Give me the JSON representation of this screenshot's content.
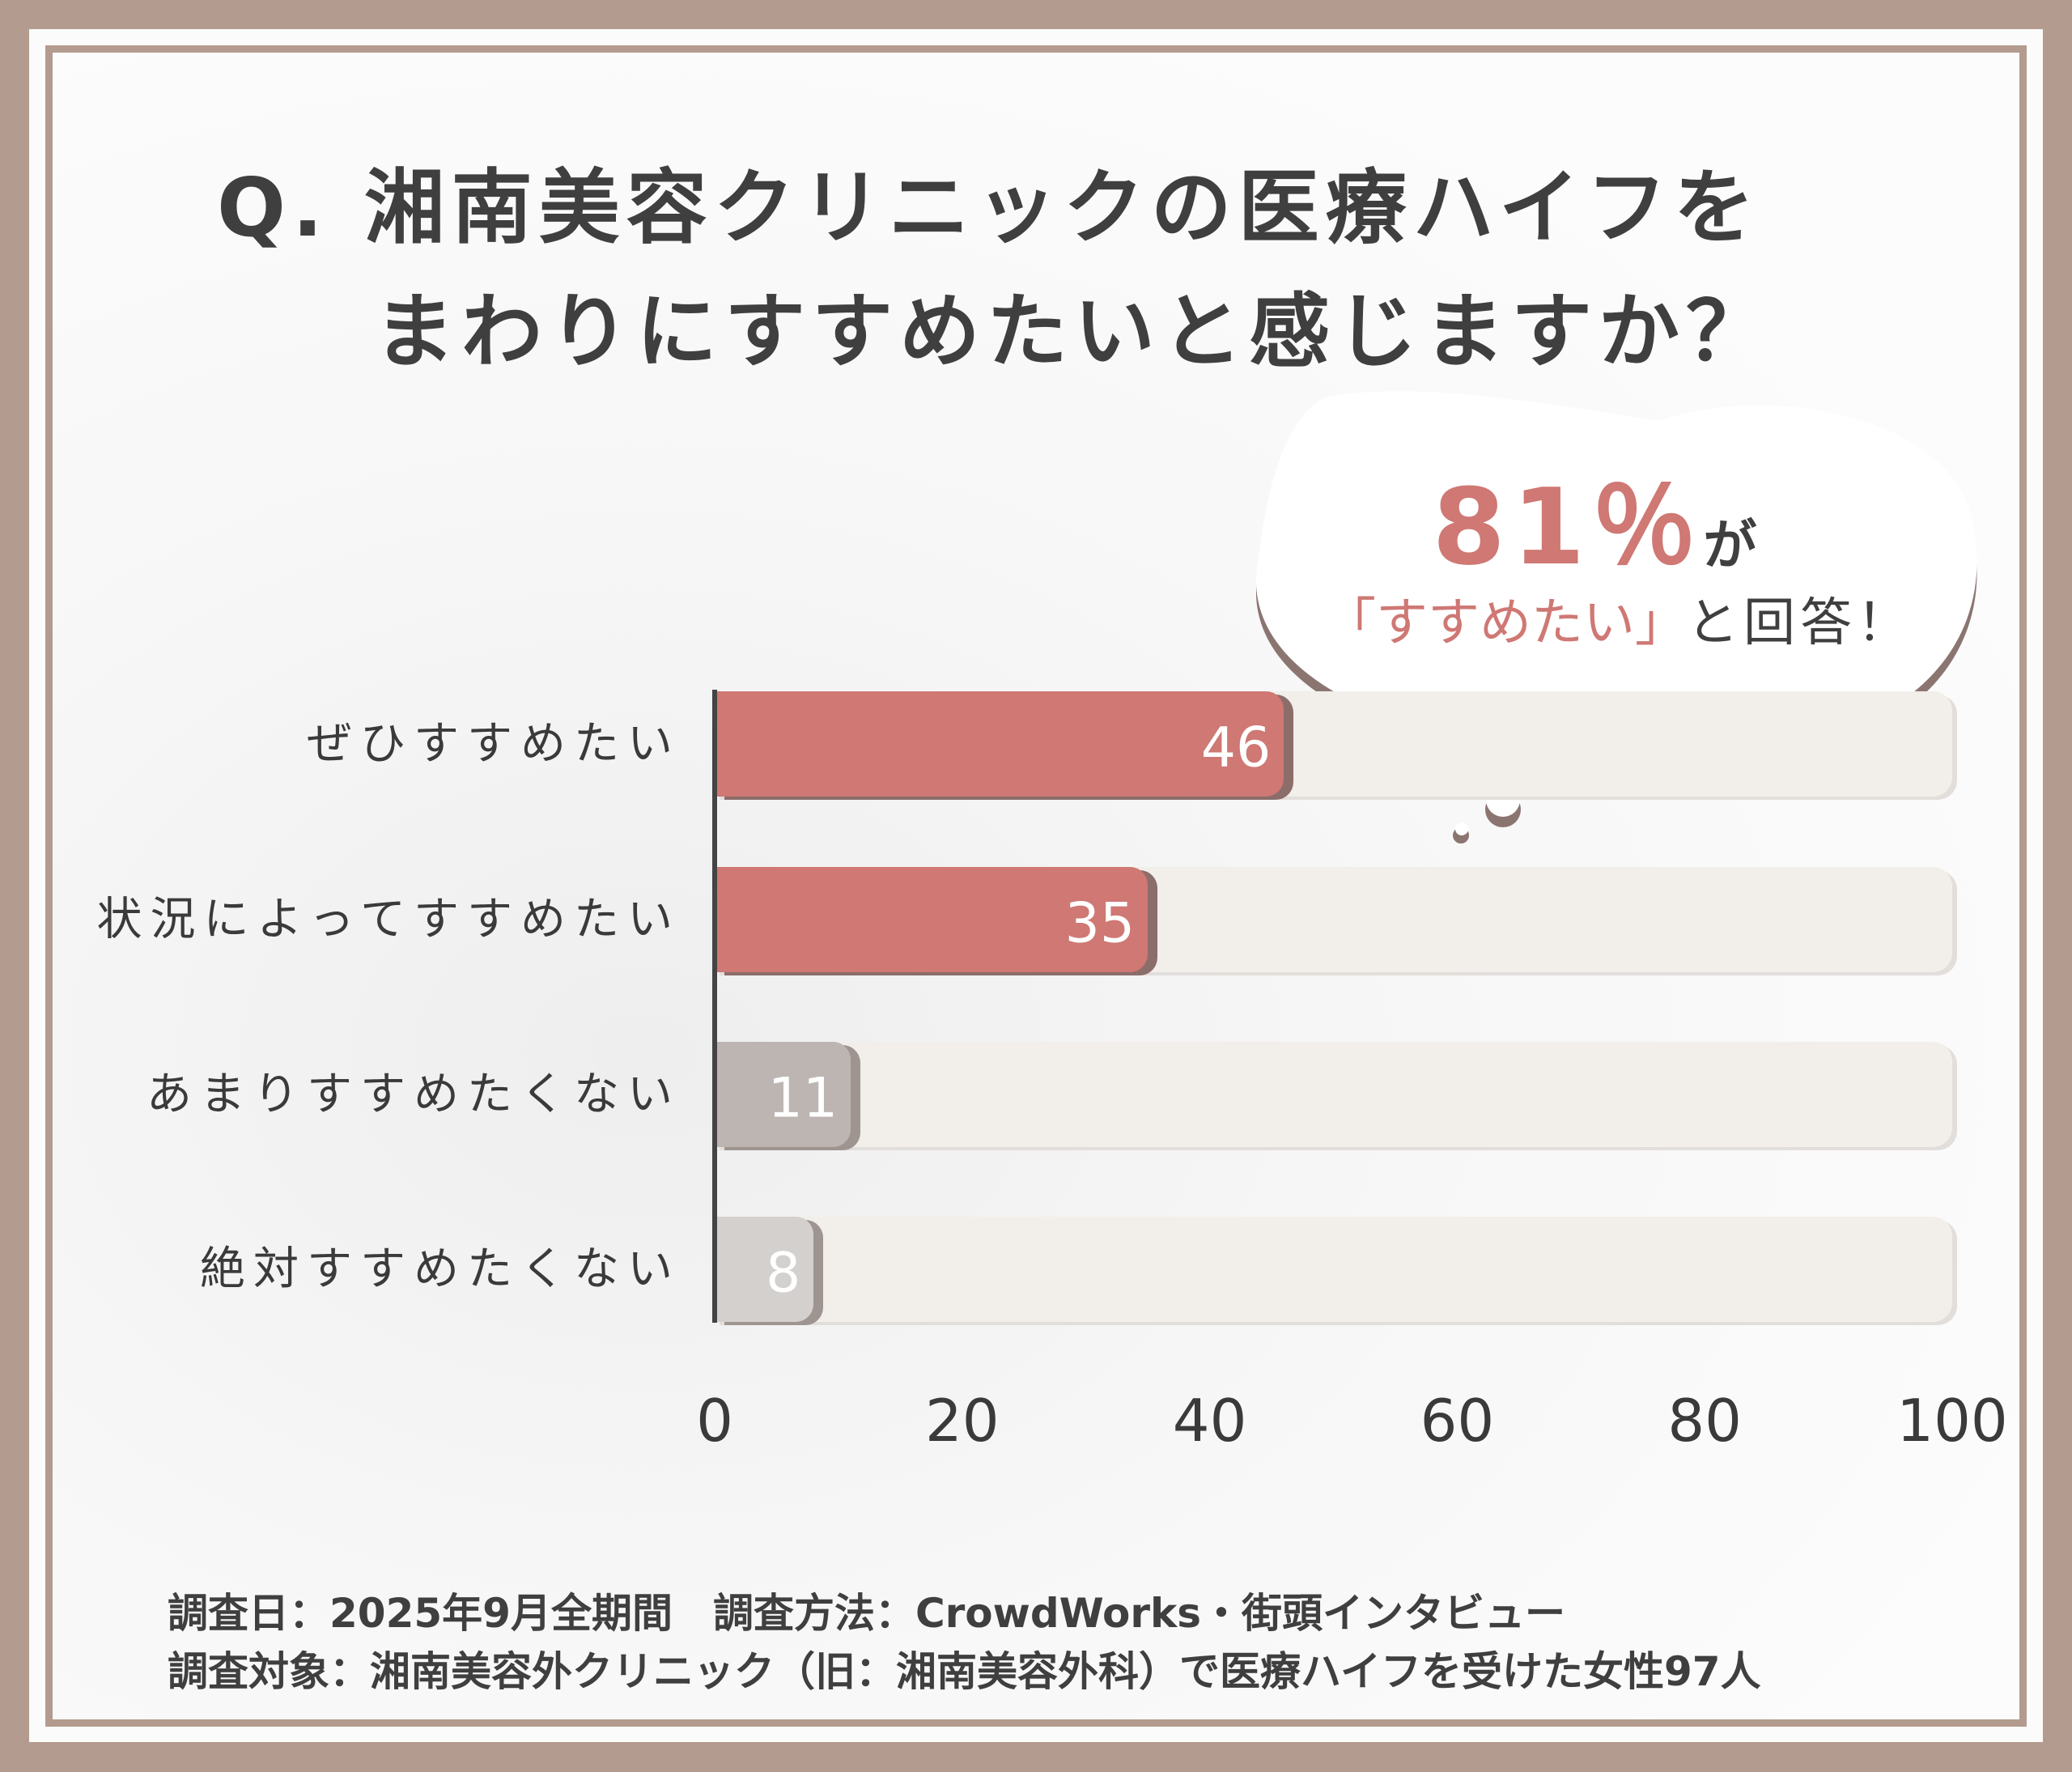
{
  "title": {
    "line1": "Q. 湘南美容クリニックの医療ハイフを",
    "line2": "まわりにすすめたいと感じますか？"
  },
  "callout": {
    "percent": "81％",
    "suffix": "が",
    "quote": "「すすめたい」",
    "tail": "と回答！"
  },
  "footer": {
    "line1": "調査日：2025年9月全期間　調査方法：CrowdWorks・街頭インタビュー",
    "line2": "調査対象：湘南美容外クリニック（旧：湘南美容外科）で医療ハイフを受けた女性97人"
  },
  "colors": {
    "positive": "#cf7874",
    "positive_shadow": "#8b6d6a",
    "negative1": "#bdb5b2",
    "negative2": "#d4d0ce",
    "negative_shadow": "#9e9591"
  },
  "chart_data": {
    "type": "bar",
    "orientation": "horizontal",
    "categories": [
      "ぜひすすめたい",
      "状況によってすすめたい",
      "あまりすすめたくない",
      "絶対すすめたくない"
    ],
    "values": [
      46,
      35,
      11,
      8
    ],
    "value_labels": [
      "46",
      "35",
      "11",
      "8"
    ],
    "xlim": [
      0,
      100
    ],
    "xticks": [
      "0",
      "20",
      "40",
      "60",
      "80",
      "100"
    ],
    "title": "Q. 湘南美容クリニックの医療ハイフをまわりにすすめたいと感じますか？",
    "xlabel": "",
    "ylabel": "",
    "grid": false
  }
}
